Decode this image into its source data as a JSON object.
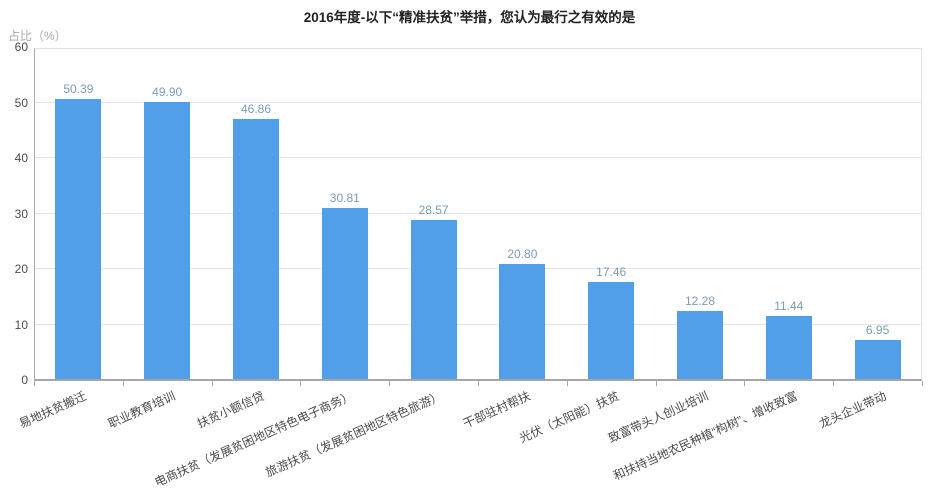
{
  "chart_data": {
    "type": "bar",
    "title": "2016年度-以下“精准扶贫”举措，您认为最行之有效的是",
    "ylabel": "占比（%）",
    "xlabel": "",
    "categories": [
      "易地扶贫搬迁",
      "职业教育培训",
      "扶贫小额信贷",
      "电商扶贫（发展贫困地区特色电子商务）",
      "旅游扶贫（发展贫困地区特色旅游）",
      "干部驻村帮扶",
      "光伏（太阳能）扶贫",
      "致富带头人创业培训",
      "和扶持当地农民种植“构树”、增收致富",
      "龙头企业带动"
    ],
    "values": [
      50.39,
      49.9,
      46.86,
      30.81,
      28.57,
      20.8,
      17.46,
      12.28,
      11.44,
      6.95
    ],
    "value_labels": [
      "50.39",
      "49.90",
      "46.86",
      "30.81",
      "28.57",
      "20.80",
      "17.46",
      "12.28",
      "11.44",
      "6.95"
    ],
    "y_ticks": [
      "0",
      "10",
      "20",
      "30",
      "40",
      "50",
      "60"
    ],
    "ylim": [
      0,
      60
    ],
    "grid": true,
    "legend_position": "none",
    "colors": {
      "bar": "#519fe8",
      "value_label": "#7c9cb5",
      "axis_line": "#a6a6a6",
      "gridline": "#e4e4e4",
      "tick_label": "#4a4a4a",
      "y_axis_title": "#a9a9a9",
      "title": "#222222",
      "background": "#ffffff"
    }
  }
}
